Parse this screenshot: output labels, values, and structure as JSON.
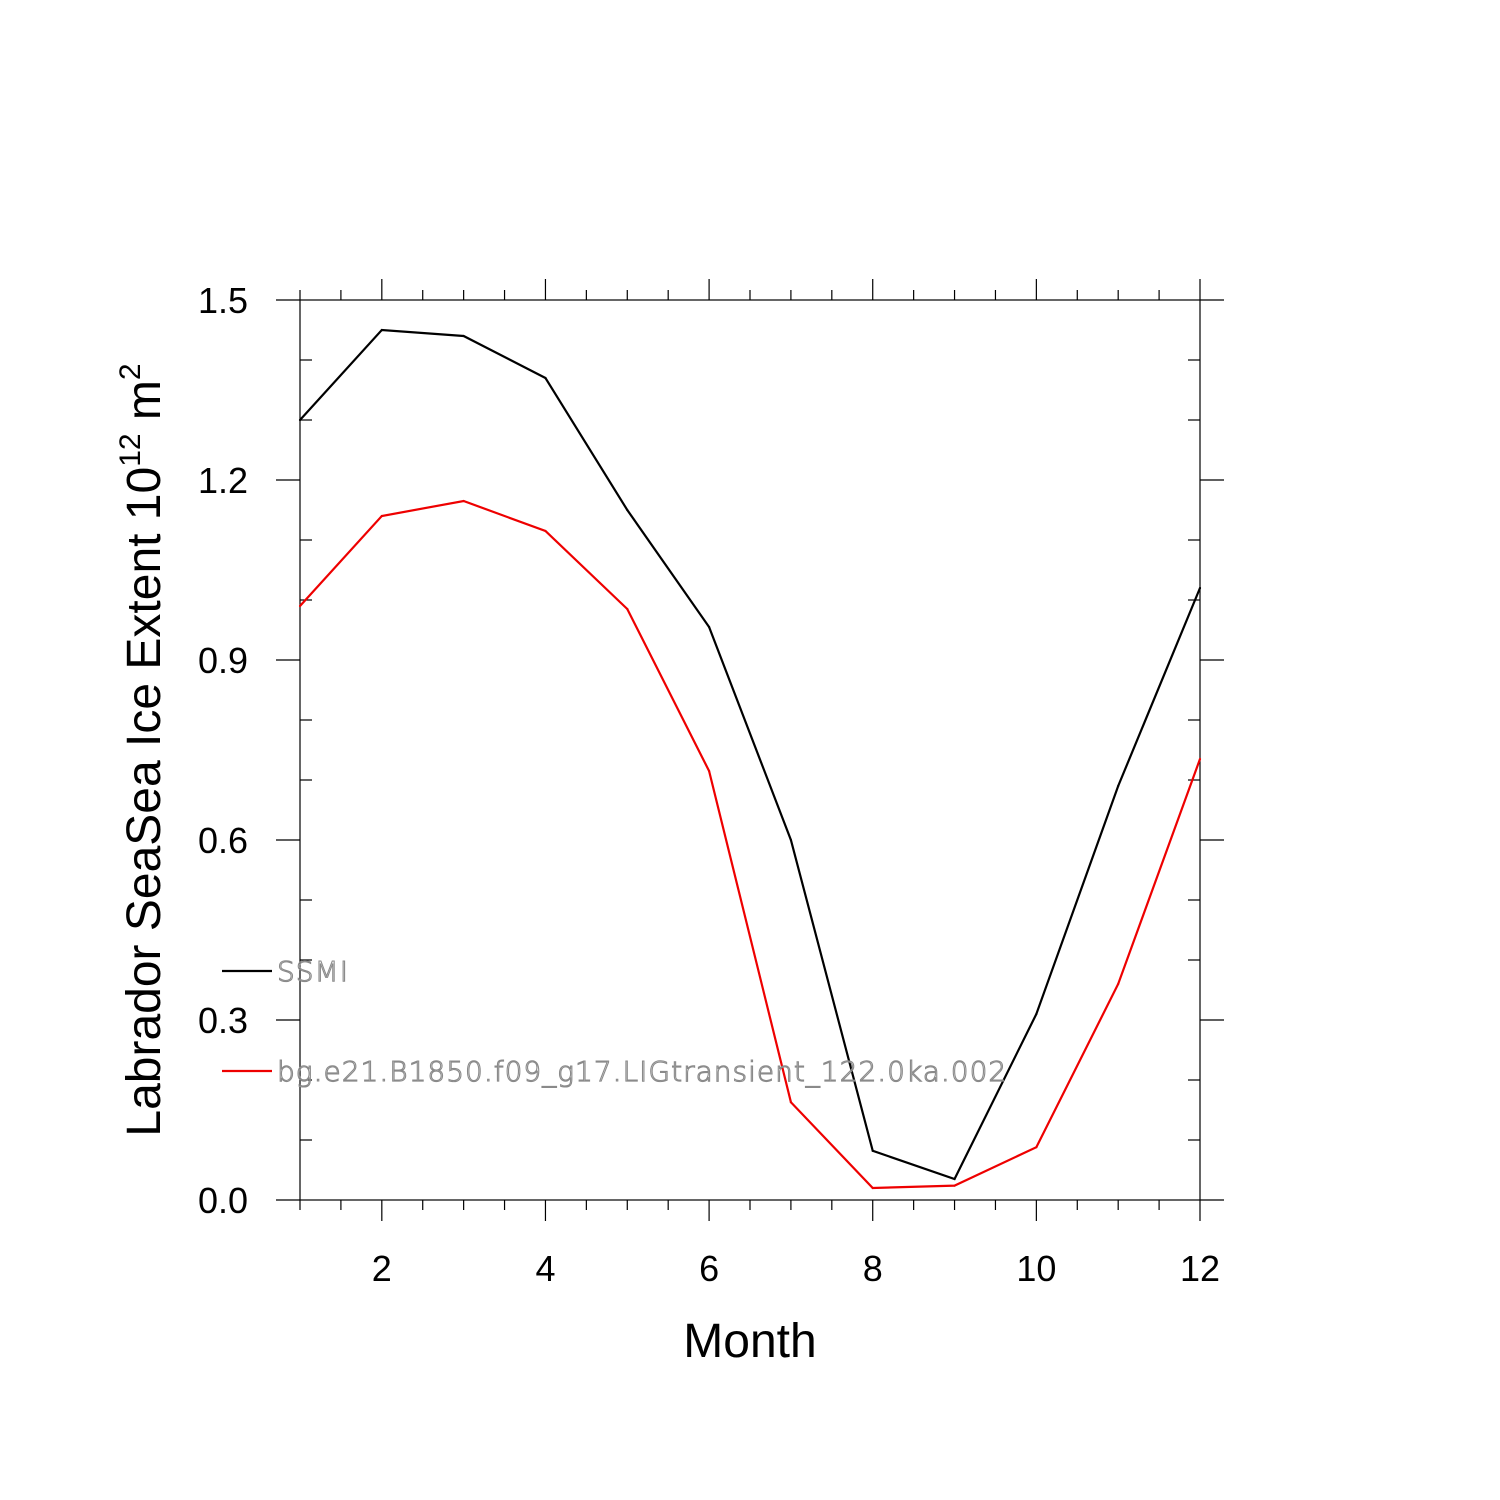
{
  "chart_data": {
    "type": "line",
    "title": "",
    "xlabel": "Month",
    "ylabel_main": "Labrador SeaSea Ice Extent 10",
    "ylabel_sup": "12",
    "ylabel_unit": " m",
    "ylabel_unit_sup": "2",
    "xlim": [
      1,
      12
    ],
    "ylim": [
      0.0,
      1.5
    ],
    "x_ticks": [
      2,
      4,
      6,
      8,
      10,
      12
    ],
    "x_tick_labels": [
      "2",
      "4",
      "6",
      "8",
      "10",
      "12"
    ],
    "y_ticks": [
      0.0,
      0.3,
      0.6,
      0.9,
      1.2,
      1.5
    ],
    "y_tick_labels": [
      "0.0",
      "0.3",
      "0.6",
      "0.9",
      "1.2",
      "1.5"
    ],
    "grid": false,
    "legend_position": "lower-left",
    "x": [
      1,
      2,
      3,
      4,
      5,
      6,
      7,
      8,
      9,
      10,
      11,
      12
    ],
    "series": [
      {
        "name": "SSMI",
        "color": "#000000",
        "values": [
          1.3,
          1.45,
          1.44,
          1.37,
          1.15,
          0.955,
          0.6,
          0.082,
          0.035,
          0.31,
          0.69,
          1.02
        ]
      },
      {
        "name": "bg.e21.B1850.f09_g17.LIGtransient_122.0ka.002",
        "color": "#ee0000",
        "values": [
          0.99,
          1.14,
          1.165,
          1.115,
          0.985,
          0.715,
          0.163,
          0.02,
          0.024,
          0.088,
          0.36,
          0.735
        ]
      }
    ]
  }
}
